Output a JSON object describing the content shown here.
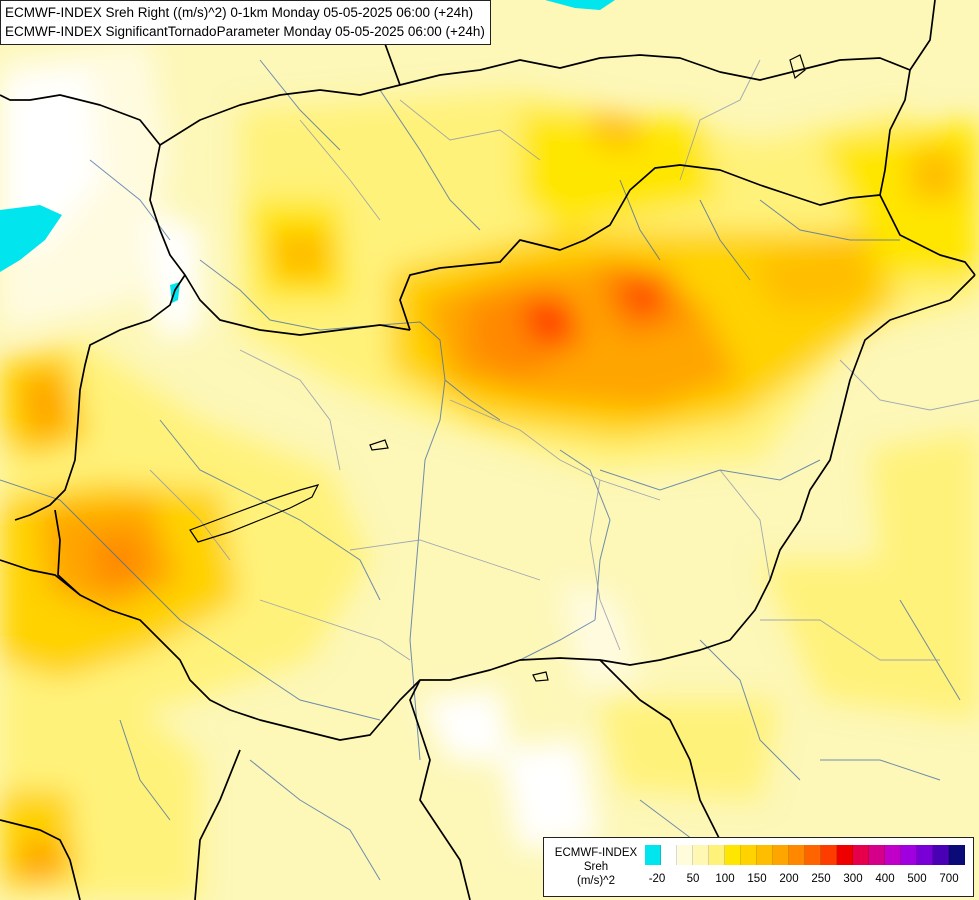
{
  "title_lines": [
    "ECMWF-INDEX Sreh Right ((m/s)^2) 0-1km Monday 05-05-2025 06:00 (+24h)",
    "ECMWF-INDEX SignificantTornadoParameter Monday 05-05-2025 06:00 (+24h)"
  ],
  "legend": {
    "title_lines": [
      "ECMWF-INDEX",
      "Sreh",
      "(m/s)^2"
    ],
    "colors": [
      "#00e5ee",
      "#ffffff",
      "#fffcdc",
      "#fff8b4",
      "#fff27a",
      "#ffe600",
      "#ffd200",
      "#ffbd00",
      "#ffa500",
      "#ff8800",
      "#ff6400",
      "#ff3c00",
      "#ee0000",
      "#e6004c",
      "#d4008a",
      "#c000c8",
      "#a000e0",
      "#7800d6",
      "#4a00b4",
      "#0a0a78"
    ],
    "labels": [
      "-20",
      "50",
      "100",
      "150",
      "200",
      "250",
      "300",
      "400",
      "500",
      "700"
    ]
  }
}
